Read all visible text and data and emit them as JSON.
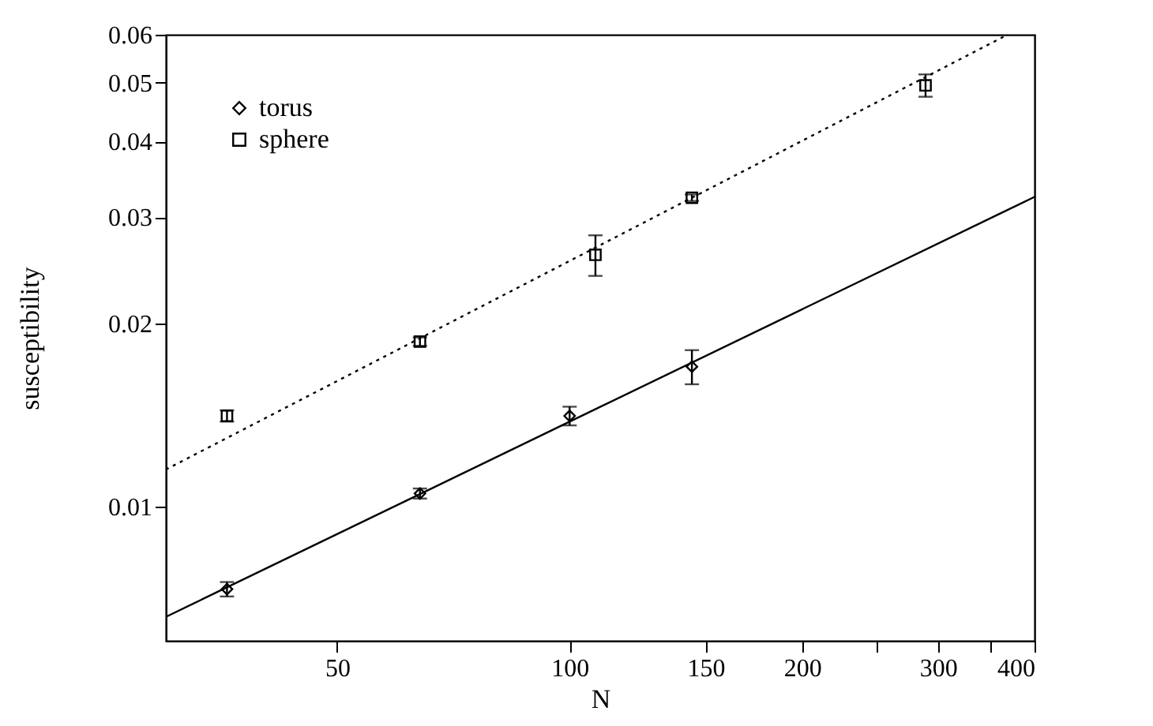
{
  "chart_data": {
    "type": "scatter",
    "xlabel": "N",
    "ylabel": "susceptibility",
    "log": "xy",
    "grid": false,
    "legend": "top left",
    "xlim": [
      30,
      400
    ],
    "xticks": [
      50,
      100,
      150,
      200,
      {
        "value": 250,
        "label": null
      },
      300,
      {
        "value": 350,
        "label": null
      },
      400
    ],
    "ylim": [
      0.006,
      0.06
    ],
    "yticks": [
      0.01,
      0.02,
      0.03,
      0.04,
      0.05,
      0.06
    ],
    "series": [
      {
        "name": "torus",
        "color": "#000000",
        "marker": "diamond",
        "x": [
          36,
          64,
          100,
          144
        ],
        "values": [
          0.0073,
          0.0105,
          0.0141,
          0.017
        ],
        "errors": [
          0.0002,
          0.0002,
          0.0005,
          0.0011
        ]
      },
      {
        "name": "sphere",
        "color": "#000000",
        "marker": "square",
        "x": [
          36,
          64,
          108,
          144,
          289
        ],
        "values": [
          0.0141,
          0.0187,
          0.026,
          0.0323,
          0.0495
        ],
        "errors": [
          0.0003,
          0.0003,
          0.002,
          0.0004,
          0.0021
        ]
      },
      {
        "type": "line",
        "color": "#000000",
        "line_style": "solid",
        "x": [
          30,
          400
        ],
        "values": [
          0.00657,
          0.0324
        ]
      },
      {
        "type": "line",
        "color": "#000000",
        "line_style": "dotted",
        "x": [
          30,
          369
        ],
        "values": [
          0.0115,
          0.06
        ]
      }
    ]
  }
}
